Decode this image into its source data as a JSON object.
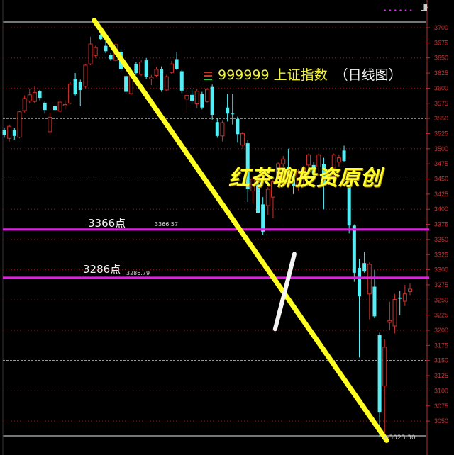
{
  "header": {
    "code": "999999",
    "name": "上证指数",
    "period": "（日线图）",
    "menu_icon": "three-bar-icon",
    "corner_icons": [
      "magenta-dots",
      "diamond-icon",
      "split-square-icon"
    ]
  },
  "watermark": "红茶聊投资原创",
  "colors": {
    "up": "#c8322d",
    "down": "#54eef6",
    "trendline": "#ffff22",
    "support": "#e020e0",
    "axis": "#c0282a",
    "background": "#000000"
  },
  "chart_data": {
    "type": "candlestick",
    "title": "999999 上证指数 （日线图）",
    "ylim": [
      3040,
      3712
    ],
    "yticks": [
      3700,
      3675,
      3650,
      3625,
      3600,
      3575,
      3550,
      3525,
      3500,
      3475,
      3450,
      3425,
      3400,
      3375,
      3350,
      3325,
      3300,
      3275,
      3250,
      3225,
      3200,
      3175,
      3150,
      3125,
      3100,
      3075,
      3050
    ],
    "grid": "dotted every 50",
    "candles_ohlc": [
      [
        3531,
        3535,
        3518,
        3523
      ],
      [
        3517,
        3540,
        3512,
        3537
      ],
      [
        3531,
        3534,
        3515,
        3521
      ],
      [
        3519,
        3563,
        3517,
        3561
      ],
      [
        3563,
        3588,
        3560,
        3583
      ],
      [
        3579,
        3598,
        3575,
        3589
      ],
      [
        3578,
        3603,
        3575,
        3593
      ],
      [
        3595,
        3597,
        3580,
        3584
      ],
      [
        3576,
        3578,
        3558,
        3564
      ],
      [
        3528,
        3560,
        3525,
        3552
      ],
      [
        3571,
        3575,
        3540,
        3564
      ],
      [
        3562,
        3580,
        3560,
        3577
      ],
      [
        3571,
        3580,
        3565,
        3573
      ],
      [
        3575,
        3610,
        3573,
        3607
      ],
      [
        3615,
        3625,
        3588,
        3590
      ],
      [
        3611,
        3614,
        3570,
        3597
      ],
      [
        3603,
        3640,
        3600,
        3638
      ],
      [
        3640,
        3685,
        3638,
        3673
      ],
      [
        3654,
        3670,
        3650,
        3667
      ],
      [
        3688,
        3702,
        3679,
        3681
      ],
      [
        3670,
        3678,
        3658,
        3661
      ],
      [
        3655,
        3658,
        3645,
        3648
      ],
      [
        3646,
        3675,
        3644,
        3672
      ],
      [
        3660,
        3665,
        3630,
        3632
      ],
      [
        3620,
        3622,
        3590,
        3594
      ],
      [
        3591,
        3630,
        3589,
        3626
      ],
      [
        3640,
        3643,
        3622,
        3625
      ],
      [
        3623,
        3646,
        3620,
        3643
      ],
      [
        3646,
        3650,
        3615,
        3619
      ],
      [
        3615,
        3622,
        3605,
        3618
      ],
      [
        3621,
        3635,
        3618,
        3631
      ],
      [
        3632,
        3636,
        3594,
        3597
      ],
      [
        3597,
        3622,
        3595,
        3619
      ],
      [
        3626,
        3645,
        3624,
        3640
      ],
      [
        3648,
        3660,
        3630,
        3632
      ],
      [
        3628,
        3630,
        3592,
        3596
      ],
      [
        3582,
        3600,
        3560,
        3588
      ],
      [
        3589,
        3598,
        3576,
        3579
      ],
      [
        3574,
        3598,
        3567,
        3595
      ],
      [
        3590,
        3594,
        3565,
        3568
      ],
      [
        3578,
        3600,
        3576,
        3598
      ],
      [
        3602,
        3606,
        3548,
        3556
      ],
      [
        3544,
        3550,
        3518,
        3521
      ],
      [
        3521,
        3546,
        3512,
        3543
      ],
      [
        3568,
        3590,
        3545,
        3558
      ],
      [
        3558,
        3590,
        3540,
        3557
      ],
      [
        3549,
        3553,
        3510,
        3524
      ],
      [
        3506,
        3528,
        3500,
        3525
      ],
      [
        3509,
        3514,
        3412,
        3433
      ],
      [
        3430,
        3455,
        3410,
        3450
      ],
      [
        3441,
        3445,
        3390,
        3394
      ],
      [
        3408,
        3420,
        3358,
        3363
      ],
      [
        3406,
        3436,
        3390,
        3433
      ],
      [
        3420,
        3448,
        3385,
        3445
      ],
      [
        3455,
        3478,
        3450,
        3475
      ],
      [
        3475,
        3488,
        3470,
        3483
      ],
      [
        3470,
        3500,
        3455,
        3460
      ],
      [
        3455,
        3458,
        3425,
        3438
      ],
      [
        3438,
        3466,
        3430,
        3463
      ],
      [
        3460,
        3472,
        3440,
        3468
      ],
      [
        3473,
        3492,
        3468,
        3490
      ],
      [
        3473,
        3478,
        3450,
        3459
      ],
      [
        3470,
        3493,
        3455,
        3490
      ],
      [
        3474,
        3485,
        3400,
        3441
      ],
      [
        3452,
        3456,
        3440,
        3450
      ],
      [
        3468,
        3492,
        3440,
        3490
      ],
      [
        3478,
        3490,
        3470,
        3485
      ],
      [
        3497,
        3505,
        3478,
        3480
      ],
      [
        3438,
        3440,
        3360,
        3373
      ],
      [
        3373,
        3375,
        3280,
        3295
      ],
      [
        3303,
        3318,
        3155,
        3256
      ],
      [
        3311,
        3330,
        3295,
        3297
      ],
      [
        3260,
        3312,
        3218,
        3309
      ],
      [
        3272,
        3300,
        3220,
        3223
      ],
      [
        3192,
        3196,
        3023.3,
        3064
      ],
      [
        3108,
        3185,
        3030,
        3172
      ],
      [
        3213,
        3247,
        3200,
        3216
      ],
      [
        3207,
        3260,
        3195,
        3251
      ],
      [
        3254,
        3265,
        3225,
        3252
      ],
      [
        3248,
        3275,
        3240,
        3260
      ],
      [
        3264,
        3277,
        3258,
        3268
      ]
    ],
    "annotations": {
      "levels": [
        {
          "label": "3366点",
          "value_label": "3366.57",
          "value": 3366.57
        },
        {
          "label": "3286点",
          "value_label": "3286.79",
          "value": 3286.79
        }
      ],
      "low_label": "3023.30",
      "low_arrow": "←",
      "trendline": {
        "from": {
          "candle": 19,
          "price": 3712
        },
        "to": {
          "candle": 74,
          "price": 3018
        }
      },
      "hand_stroke": [
        {
          "candle": 53.4,
          "price": 3202
        },
        {
          "candle": 55.5,
          "price": 3270
        },
        {
          "candle": 57.2,
          "price": 3326
        }
      ]
    }
  }
}
